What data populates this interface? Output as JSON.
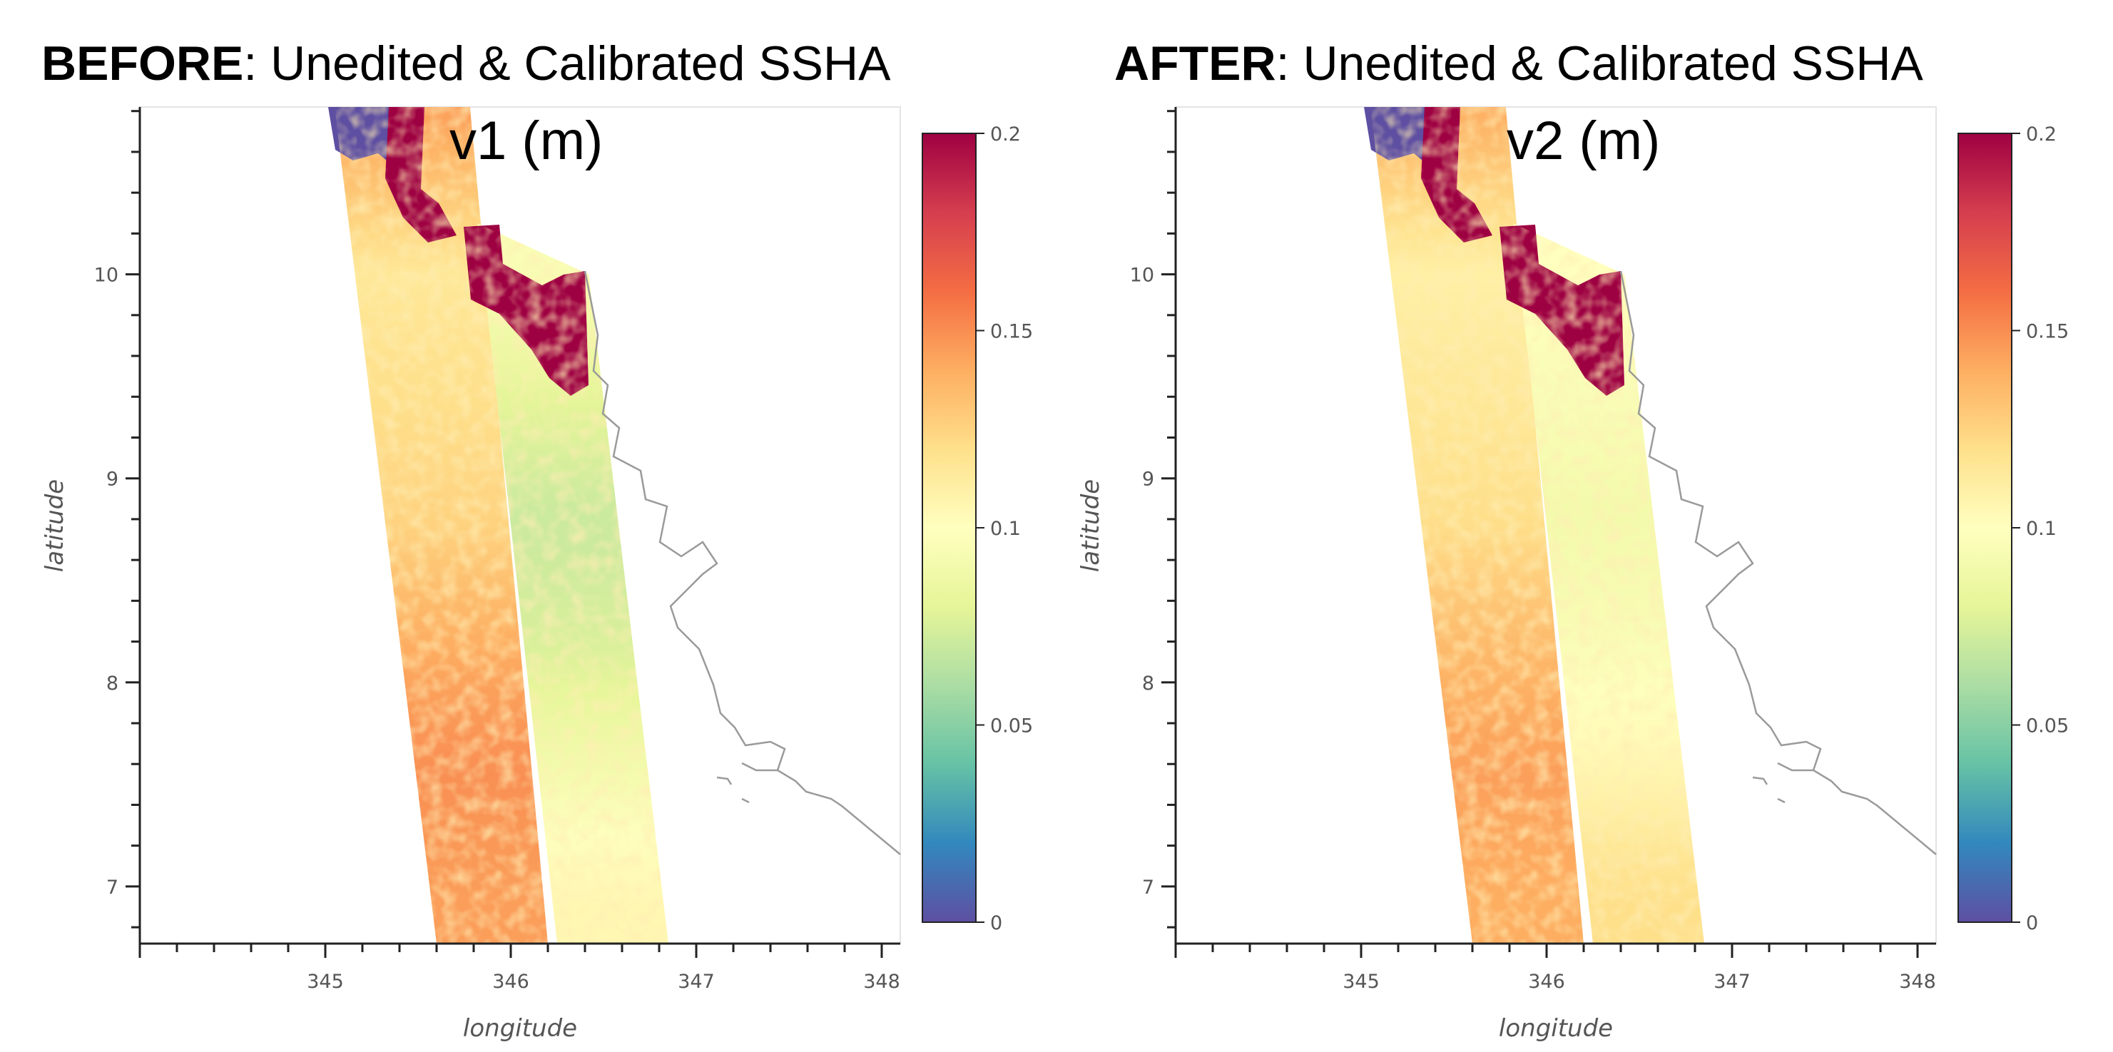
{
  "figure": {
    "panels": [
      {
        "id": "before",
        "title_bold": "BEFORE",
        "title_rest": ": Unedited & Calibrated SSHA",
        "subtitle": "v1 (m)"
      },
      {
        "id": "after",
        "title_bold": "AFTER",
        "title_rest": ": Unedited & Calibrated SSHA",
        "subtitle": "v2 (m)"
      }
    ]
  },
  "chart_data": [
    {
      "type": "heatmap",
      "title": "BEFORE: Unedited & Calibrated SSHA v1 (m)",
      "xlabel": "longitude",
      "ylabel": "latitude",
      "xlim": [
        344.0,
        348.1
      ],
      "ylim": [
        6.72,
        10.82
      ],
      "xticks": [
        345,
        346,
        347,
        348
      ],
      "yticks": [
        7,
        8,
        9,
        10
      ],
      "colorbar": {
        "min": 0,
        "max": 0.2,
        "ticks": [
          0,
          0.05,
          0.1,
          0.15,
          0.2
        ],
        "labels": [
          "0",
          "0.05",
          "0.1",
          "0.15",
          "0.2"
        ],
        "colormap": "Spectral_r"
      },
      "swaths": [
        {
          "name": "west swath",
          "corners_lonlat": [
            [
              345.05,
              10.82
            ],
            [
              345.78,
              10.82
            ],
            [
              346.2,
              6.72
            ],
            [
              345.6,
              6.72
            ]
          ],
          "profile_lat": [
            10.8,
            10.0,
            9.4,
            8.8,
            8.2,
            7.6,
            7.0
          ],
          "profile_ssha": [
            0.145,
            0.115,
            0.12,
            0.125,
            0.14,
            0.15,
            0.145
          ],
          "mean_ssha": 0.13
        },
        {
          "name": "east swath",
          "corners_lonlat": [
            [
              345.82,
              10.25
            ],
            [
              346.42,
              10.0
            ],
            [
              346.85,
              6.72
            ],
            [
              346.25,
              6.72
            ]
          ],
          "profile_lat": [
            10.0,
            9.4,
            8.8,
            8.2,
            7.6,
            7.0
          ],
          "profile_ssha": [
            0.095,
            0.08,
            0.07,
            0.075,
            0.09,
            0.105
          ],
          "mean_ssha": 0.085
        }
      ],
      "land_mask_ssha": 0.2,
      "coastline": true
    },
    {
      "type": "heatmap",
      "title": "AFTER: Unedited & Calibrated SSHA v2 (m)",
      "xlabel": "longitude",
      "ylabel": "latitude",
      "xlim": [
        344.0,
        348.1
      ],
      "ylim": [
        6.72,
        10.82
      ],
      "xticks": [
        345,
        346,
        347,
        348
      ],
      "yticks": [
        7,
        8,
        9,
        10
      ],
      "colorbar": {
        "min": 0,
        "max": 0.2,
        "ticks": [
          0,
          0.05,
          0.1,
          0.15,
          0.2
        ],
        "labels": [
          "0",
          "0.05",
          "0.1",
          "0.15",
          "0.2"
        ],
        "colormap": "Spectral_r"
      },
      "swaths": [
        {
          "name": "west swath",
          "corners_lonlat": [
            [
              345.05,
              10.82
            ],
            [
              345.78,
              10.82
            ],
            [
              346.2,
              6.72
            ],
            [
              345.6,
              6.72
            ]
          ],
          "profile_lat": [
            10.8,
            10.0,
            9.4,
            8.8,
            8.2,
            7.6,
            7.0
          ],
          "profile_ssha": [
            0.14,
            0.11,
            0.115,
            0.12,
            0.135,
            0.145,
            0.14
          ],
          "mean_ssha": 0.125
        },
        {
          "name": "east swath",
          "corners_lonlat": [
            [
              345.82,
              10.25
            ],
            [
              346.42,
              10.0
            ],
            [
              346.85,
              6.72
            ],
            [
              346.25,
              6.72
            ]
          ],
          "profile_lat": [
            10.0,
            9.4,
            8.8,
            8.2,
            7.6,
            7.0
          ],
          "profile_ssha": [
            0.1,
            0.095,
            0.09,
            0.095,
            0.105,
            0.12
          ],
          "mean_ssha": 0.1
        }
      ],
      "land_mask_ssha": 0.2,
      "coastline": true
    }
  ]
}
